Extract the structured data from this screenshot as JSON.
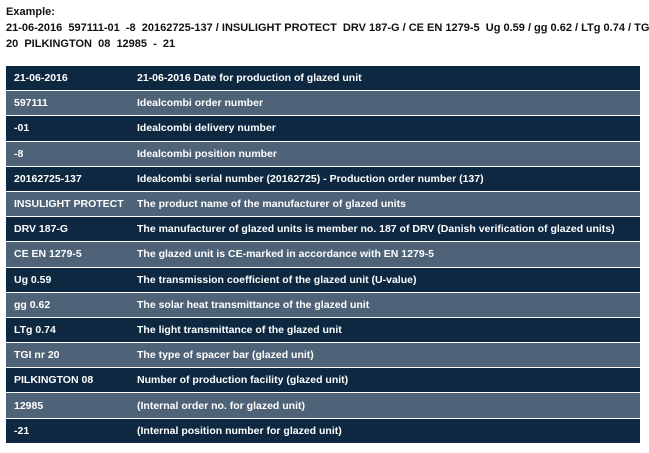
{
  "intro": {
    "heading": "Example:",
    "line1": "21-06-2016  597111-01  -8  20162725-137 / INSULIGHT PROTECT  DRV 187-G / CE EN 1279-5  Ug 0.59 / gg 0.62 / LTg 0.74 / TGI  nr",
    "line2": "20  PILKINGTON  08  12985  -  21"
  },
  "colors": {
    "row_dark": "#0e2841",
    "row_light": "#4e6278",
    "row_text": "#ffffff"
  },
  "rows": [
    {
      "code": "21-06-2016",
      "description": "21-06-2016 Date for production of glazed unit"
    },
    {
      "code": "597111",
      "description": "Idealcombi order number"
    },
    {
      "code": "-01",
      "description": "Idealcombi delivery number"
    },
    {
      "code": "-8",
      "description": "Idealcombi position number"
    },
    {
      "code": "20162725-137",
      "description": "Idealcombi serial number (20162725) - Production order number (137)"
    },
    {
      "code": "INSULIGHT PROTECT",
      "description": "The product name of the manufacturer of glazed units"
    },
    {
      "code": "DRV 187-G",
      "description": "The manufacturer of glazed units is member no. 187 of DRV (Danish verification of glazed units)"
    },
    {
      "code": "CE EN 1279-5",
      "description": "The glazed unit is CE-marked in accordance with EN 1279-5"
    },
    {
      "code": "Ug 0.59",
      "description": "The transmission coefficient of the glazed unit (U-value)"
    },
    {
      "code": "gg 0.62",
      "description": "The solar heat transmittance of the glazed unit"
    },
    {
      "code": "LTg 0.74",
      "description": "The light transmittance of the glazed unit"
    },
    {
      "code": "TGI nr 20",
      "description": "The type of spacer bar (glazed unit)"
    },
    {
      "code": "PILKINGTON 08",
      "description": "Number of production facility (glazed unit)"
    },
    {
      "code": "12985",
      "description": "(Internal order no. for glazed unit)"
    },
    {
      "code": "-21",
      "description": "(Internal position number for glazed unit)"
    }
  ]
}
